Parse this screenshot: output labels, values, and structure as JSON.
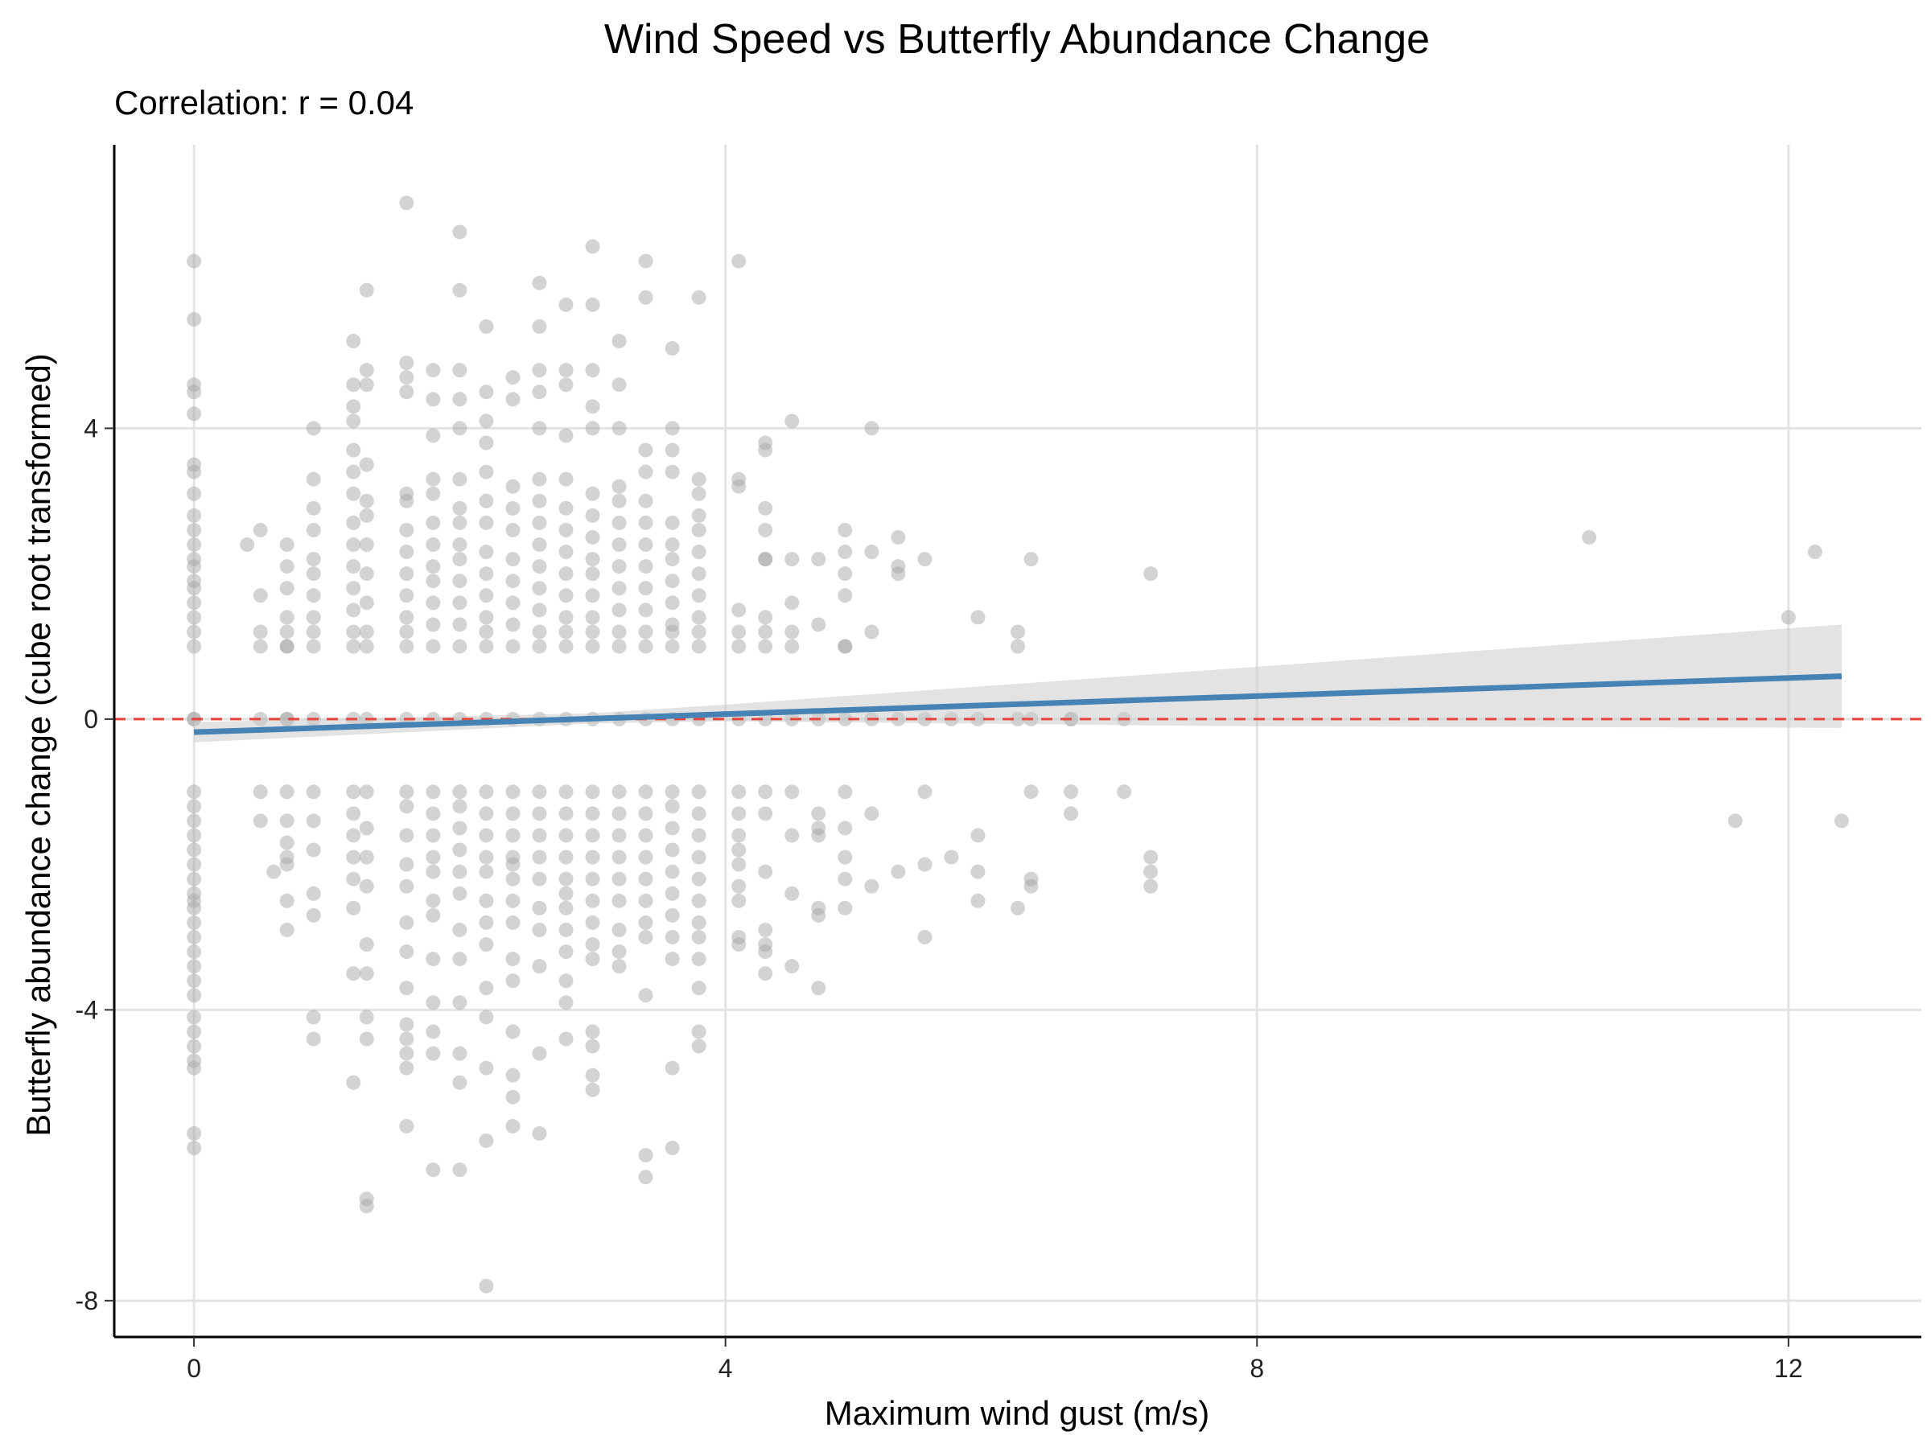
{
  "chart_data": {
    "type": "scatter",
    "title": "Wind Speed vs Butterfly Abundance Change",
    "subtitle": "Correlation: r = 0.04",
    "xlabel": "Maximum wind gust (m/s)",
    "ylabel": "Butterfly abundance change (cube root transformed)",
    "xlim": [
      -0.6,
      13.0
    ],
    "ylim": [
      -8.5,
      7.9
    ],
    "xticks": [
      0,
      4,
      8,
      12
    ],
    "yticks": [
      -8,
      -4,
      0,
      4
    ],
    "xtick_labels": [
      "0",
      "4",
      "8",
      "12"
    ],
    "ytick_labels": [
      "-8",
      "-4",
      "0",
      "4"
    ],
    "grid": true,
    "reference_line": {
      "y": 0,
      "style": "dashed",
      "color": "#e8433a"
    },
    "point_color": "#a8a8a8",
    "trend": {
      "color": "#4682b4",
      "band_color": "#cccccc",
      "points": [
        [
          0.0,
          -0.18
        ],
        [
          12.4,
          0.59
        ]
      ],
      "band": [
        [
          0.0,
          -0.32,
          -0.04
        ],
        [
          3.0,
          -0.06,
          0.08
        ],
        [
          4.0,
          -0.03,
          0.2
        ],
        [
          8.0,
          -0.1,
          0.72
        ],
        [
          12.4,
          -0.12,
          1.3
        ]
      ]
    },
    "series": [
      {
        "x": [
          0,
          0,
          0,
          0,
          0,
          0,
          0,
          0,
          0,
          0,
          0,
          0,
          0,
          0,
          0,
          0,
          0,
          0,
          0,
          0,
          0,
          0,
          0,
          0,
          0,
          0,
          0,
          0,
          0,
          0,
          0,
          0,
          0,
          0,
          0,
          0,
          0,
          0,
          0,
          0,
          0,
          0,
          0,
          0,
          0.4,
          0.5,
          0.5,
          0.5,
          0.5,
          0.5,
          0.6,
          0.5,
          0.5,
          0.7,
          0.7,
          0.7,
          0.7,
          0.7,
          0.7,
          0.7,
          0.7,
          0.7,
          0.7,
          0.7,
          0.7,
          0.7,
          0.7,
          0.7,
          0.7,
          0.9,
          0.9,
          0.9,
          0.9,
          0.9,
          0.9,
          0.9,
          0.9,
          0.9,
          0.9,
          0.9,
          0.9,
          0.9,
          0.9,
          0.9,
          0.9,
          0.9,
          0.9,
          1.2,
          1.2,
          1.2,
          1.2,
          1.2,
          1.2,
          1.2,
          1.2,
          1.2,
          1.2,
          1.2,
          1.2,
          1.2,
          1.2,
          1.2,
          1.2,
          1.2,
          1.2,
          1.2,
          1.2,
          1.2,
          1.2,
          1.2,
          1.3,
          1.3,
          1.3,
          1.3,
          1.3,
          1.3,
          1.3,
          1.3,
          1.3,
          1.3,
          1.3,
          1.3,
          1.3,
          1.3,
          1.3,
          1.3,
          1.3,
          1.3,
          1.3,
          1.3,
          1.3,
          1.3,
          1.6,
          1.6,
          1.6,
          1.6,
          1.6,
          1.6,
          1.6,
          1.6,
          1.6,
          1.6,
          1.6,
          1.6,
          1.6,
          1.6,
          1.6,
          1.6,
          1.6,
          1.6,
          1.6,
          1.6,
          1.6,
          1.6,
          1.6,
          1.6,
          1.6,
          1.6,
          1.6,
          1.8,
          1.8,
          1.8,
          1.8,
          1.8,
          1.8,
          1.8,
          1.8,
          1.8,
          1.8,
          1.8,
          1.8,
          1.8,
          1.8,
          1.8,
          1.8,
          1.8,
          1.8,
          1.8,
          1.8,
          1.8,
          1.8,
          1.8,
          1.8,
          1.8,
          2.0,
          2.0,
          2.0,
          2.0,
          2.0,
          2.0,
          2.0,
          2.0,
          2.0,
          2.0,
          2.0,
          2.0,
          2.0,
          2.0,
          2.0,
          2.0,
          2.0,
          2.0,
          2.0,
          2.0,
          2.0,
          2.0,
          2.0,
          2.0,
          2.0,
          2.0,
          2.0,
          2.2,
          2.2,
          2.2,
          2.2,
          2.2,
          2.2,
          2.2,
          2.2,
          2.2,
          2.2,
          2.2,
          2.2,
          2.2,
          2.2,
          2.2,
          2.2,
          2.2,
          2.2,
          2.2,
          2.2,
          2.2,
          2.2,
          2.2,
          2.2,
          2.2,
          2.2,
          2.2,
          2.4,
          2.4,
          2.4,
          2.4,
          2.4,
          2.4,
          2.4,
          2.4,
          2.4,
          2.4,
          2.4,
          2.4,
          2.4,
          2.4,
          2.4,
          2.4,
          2.4,
          2.4,
          2.4,
          2.4,
          2.4,
          2.4,
          2.4,
          2.4,
          2.4,
          2.6,
          2.6,
          2.6,
          2.6,
          2.6,
          2.6,
          2.6,
          2.6,
          2.6,
          2.6,
          2.6,
          2.6,
          2.6,
          2.6,
          2.6,
          2.6,
          2.6,
          2.6,
          2.6,
          2.6,
          2.6,
          2.6,
          2.6,
          2.6,
          2.6,
          2.8,
          2.8,
          2.8,
          2.8,
          2.8,
          2.8,
          2.8,
          2.8,
          2.8,
          2.8,
          2.8,
          2.8,
          2.8,
          2.8,
          2.8,
          2.8,
          2.8,
          2.8,
          2.8,
          2.8,
          2.8,
          2.8,
          2.8,
          2.8,
          2.8,
          2.8,
          3.0,
          3.0,
          3.0,
          3.0,
          3.0,
          3.0,
          3.0,
          3.0,
          3.0,
          3.0,
          3.0,
          3.0,
          3.0,
          3.0,
          3.0,
          3.0,
          3.0,
          3.0,
          3.0,
          3.0,
          3.0,
          3.0,
          3.0,
          3.0,
          3.0,
          3.0,
          3.0,
          3.0,
          3.2,
          3.2,
          3.2,
          3.2,
          3.2,
          3.2,
          3.2,
          3.2,
          3.2,
          3.2,
          3.2,
          3.2,
          3.2,
          3.2,
          3.2,
          3.2,
          3.2,
          3.2,
          3.2,
          3.2,
          3.2,
          3.2,
          3.4,
          3.4,
          3.4,
          3.4,
          3.4,
          3.4,
          3.4,
          3.4,
          3.4,
          3.4,
          3.4,
          3.4,
          3.4,
          3.4,
          3.4,
          3.4,
          3.4,
          3.4,
          3.4,
          3.4,
          3.4,
          3.4,
          3.4,
          3.4,
          3.6,
          3.6,
          3.6,
          3.6,
          3.6,
          3.6,
          3.6,
          3.6,
          3.6,
          3.6,
          3.6,
          3.6,
          3.6,
          3.6,
          3.6,
          3.6,
          3.6,
          3.6,
          3.6,
          3.6,
          3.6,
          3.6,
          3.6,
          3.6,
          3.8,
          3.8,
          3.8,
          3.8,
          3.8,
          3.8,
          3.8,
          3.8,
          3.8,
          3.8,
          3.8,
          3.8,
          3.8,
          3.8,
          3.8,
          3.8,
          3.8,
          3.8,
          3.8,
          3.8,
          3.8,
          3.8,
          3.8,
          3.8,
          4.1,
          4.1,
          4.1,
          4.1,
          4.1,
          4.1,
          4.1,
          4.1,
          4.1,
          4.1,
          4.1,
          4.1,
          4.1,
          4.1,
          4.1,
          4.1,
          4.3,
          4.3,
          4.3,
          4.3,
          4.3,
          4.3,
          4.3,
          4.3,
          4.3,
          4.3,
          4.3,
          4.3,
          4.3,
          4.3,
          4.3,
          4.3,
          4.3,
          4.5,
          4.5,
          4.5,
          4.5,
          4.5,
          4.5,
          4.5,
          4.5,
          4.5,
          4.5,
          4.7,
          4.7,
          4.7,
          4.7,
          4.7,
          4.7,
          4.7,
          4.7,
          4.7,
          4.9,
          4.9,
          4.9,
          4.9,
          4.9,
          4.9,
          4.9,
          4.9,
          4.9,
          4.9,
          4.9,
          4.9,
          5.1,
          5.1,
          5.1,
          5.1,
          5.1,
          5.1,
          5.3,
          5.3,
          5.3,
          5.3,
          5.3,
          5.5,
          5.5,
          5.5,
          5.5,
          5.5,
          5.7,
          5.7,
          5.9,
          5.9,
          5.9,
          5.9,
          5.9,
          6.2,
          6.2,
          6.2,
          6.2,
          6.3,
          6.3,
          6.3,
          6.3,
          6.3,
          6.6,
          6.6,
          6.6,
          6.6,
          7.0,
          7.0,
          7.2,
          7.2,
          7.2,
          7.2,
          10.5,
          11.6,
          12.0,
          12.2,
          12.4
        ],
        "y": [
          6.3,
          5.5,
          4.6,
          4.5,
          4.2,
          3.5,
          3.4,
          3.1,
          2.8,
          2.6,
          2.4,
          2.2,
          2.1,
          1.9,
          1.8,
          1.6,
          1.4,
          1.2,
          1.0,
          0,
          0,
          -1.0,
          -1.2,
          -1.4,
          -1.6,
          -1.8,
          -2.0,
          -2.2,
          -2.4,
          -2.6,
          -2.8,
          -3.0,
          -3.2,
          -3.4,
          -3.6,
          -3.8,
          -4.1,
          -4.3,
          -4.5,
          -4.7,
          -4.8,
          -5.7,
          -5.9,
          -2.5,
          2.4,
          1.7,
          2.6,
          1.2,
          1.0,
          0,
          -2.1,
          -1.0,
          -1.4,
          2.4,
          2.1,
          1.8,
          1.4,
          1.2,
          1.0,
          0,
          -1.0,
          -1.4,
          -1.7,
          -1.9,
          -2.0,
          -2.5,
          -2.9,
          0,
          1.0,
          4.0,
          3.3,
          2.9,
          2.6,
          2.2,
          2.0,
          1.7,
          1.4,
          1.2,
          1.0,
          0,
          -1.0,
          -1.4,
          -1.8,
          -2.4,
          -2.7,
          -4.1,
          -4.4,
          5.2,
          4.6,
          4.3,
          4.1,
          3.7,
          3.4,
          3.1,
          2.7,
          2.4,
          2.1,
          1.8,
          1.5,
          1.2,
          1.0,
          0,
          -1.0,
          -1.3,
          -1.6,
          -1.9,
          -2.2,
          -2.6,
          -3.5,
          -5.0,
          5.9,
          4.8,
          4.6,
          3.5,
          3.0,
          2.8,
          2.4,
          2.0,
          1.6,
          1.2,
          1.0,
          0,
          -1.0,
          -1.5,
          -1.9,
          -2.3,
          -3.1,
          -3.5,
          -4.1,
          -4.4,
          -6.6,
          -6.7,
          7.1,
          4.9,
          4.7,
          4.5,
          3.1,
          3.0,
          2.6,
          2.3,
          2.0,
          1.7,
          1.4,
          1.2,
          1.0,
          0,
          -1.0,
          -1.2,
          -1.6,
          -2.0,
          -2.3,
          -2.8,
          -3.2,
          -3.7,
          -4.2,
          -4.4,
          -4.6,
          -4.8,
          -5.6,
          4.8,
          4.4,
          3.9,
          3.3,
          3.1,
          2.7,
          2.4,
          2.1,
          1.9,
          1.6,
          1.3,
          1.0,
          0,
          -1.0,
          -1.3,
          -1.6,
          -1.9,
          -2.1,
          -2.5,
          -2.7,
          -3.3,
          -3.9,
          -4.3,
          -4.6,
          -6.2,
          6.7,
          5.9,
          4.8,
          4.4,
          4.0,
          3.3,
          2.9,
          2.7,
          2.4,
          2.2,
          1.9,
          1.6,
          1.3,
          1.0,
          0,
          -1.0,
          -1.2,
          -1.5,
          -1.8,
          -2.1,
          -2.4,
          -2.9,
          -3.3,
          -3.9,
          -4.6,
          -5.0,
          -6.2,
          5.4,
          4.5,
          4.1,
          3.8,
          3.4,
          3.0,
          2.7,
          2.3,
          2.0,
          1.7,
          1.4,
          1.2,
          1.0,
          0,
          -1.0,
          -1.3,
          -1.6,
          -1.9,
          -2.1,
          -2.5,
          -2.8,
          -3.1,
          -3.7,
          -4.1,
          -4.8,
          -5.8,
          -7.8,
          4.7,
          4.4,
          3.2,
          2.9,
          2.6,
          2.2,
          1.9,
          1.6,
          1.3,
          1.0,
          0,
          -1.0,
          -1.3,
          -1.6,
          -1.9,
          -2.2,
          -2.5,
          -2.8,
          -3.3,
          -3.6,
          -4.3,
          -4.9,
          -5.2,
          -5.6,
          -2.0,
          6.0,
          5.4,
          4.8,
          4.5,
          4.0,
          3.3,
          3.0,
          2.7,
          2.4,
          2.1,
          1.8,
          1.5,
          1.2,
          1.0,
          0,
          -1.0,
          -1.3,
          -1.6,
          -1.9,
          -2.2,
          -2.6,
          -2.9,
          -3.4,
          -4.6,
          -5.7,
          5.7,
          4.8,
          4.6,
          3.9,
          3.3,
          2.9,
          2.6,
          2.3,
          2.0,
          1.7,
          1.4,
          1.2,
          1.0,
          0,
          -1.0,
          -1.3,
          -1.6,
          -1.9,
          -2.2,
          -2.6,
          -2.9,
          -3.2,
          -3.6,
          -3.9,
          -4.4,
          -2.4,
          6.5,
          5.7,
          4.8,
          4.3,
          4.0,
          3.1,
          2.8,
          2.5,
          2.2,
          2.0,
          1.7,
          1.4,
          1.2,
          1.0,
          0,
          -1.0,
          -1.3,
          -1.6,
          -1.9,
          -2.2,
          -2.5,
          -2.8,
          -3.1,
          -3.3,
          -4.3,
          -4.5,
          -4.9,
          -5.1,
          5.2,
          4.6,
          4.0,
          3.2,
          3.0,
          2.7,
          2.4,
          2.1,
          1.8,
          1.5,
          1.2,
          1.0,
          0,
          -1.0,
          -1.3,
          -1.6,
          -1.9,
          -2.2,
          -2.5,
          -2.9,
          -3.2,
          -3.4,
          6.3,
          5.8,
          3.7,
          3.4,
          3.0,
          2.7,
          2.4,
          2.1,
          1.8,
          1.5,
          1.2,
          1.0,
          0,
          -1.0,
          -1.3,
          -1.6,
          -1.9,
          -2.2,
          -2.5,
          -2.8,
          -3.0,
          -3.8,
          -6.0,
          -6.3,
          5.1,
          4.0,
          3.7,
          3.4,
          2.7,
          2.4,
          2.2,
          1.9,
          1.6,
          1.3,
          1.0,
          0,
          -1.0,
          -1.2,
          -1.5,
          -1.8,
          -2.1,
          -2.4,
          -2.7,
          -3.0,
          -3.3,
          -4.8,
          -5.9,
          1.2,
          5.8,
          3.3,
          3.1,
          2.8,
          2.6,
          2.3,
          2.0,
          1.7,
          1.4,
          1.2,
          1.0,
          0,
          -1.0,
          -1.3,
          -1.6,
          -1.9,
          -2.2,
          -2.5,
          -2.8,
          -3.0,
          -3.3,
          -3.7,
          -4.3,
          -4.5,
          6.3,
          3.3,
          3.2,
          1.5,
          1.2,
          1.0,
          0,
          -1.0,
          -1.3,
          -1.6,
          -1.8,
          -2.0,
          -2.3,
          -2.5,
          -3.1,
          -3.0,
          3.8,
          3.7,
          2.9,
          2.6,
          2.2,
          2.2,
          1.4,
          1.2,
          1.0,
          0,
          -1.0,
          -1.3,
          -2.1,
          -2.9,
          -3.1,
          -3.2,
          -3.5,
          4.1,
          2.2,
          1.6,
          1.2,
          1.0,
          0,
          -1.0,
          -1.6,
          -2.4,
          -3.4,
          2.2,
          1.3,
          0,
          -1.3,
          -1.5,
          -1.6,
          -2.6,
          -2.7,
          -3.7,
          2.6,
          2.3,
          2.0,
          1.7,
          1.0,
          1.0,
          0,
          -1.0,
          -1.5,
          -1.9,
          -2.2,
          -2.6,
          4.0,
          2.3,
          1.2,
          0,
          -1.3,
          -2.3,
          2.5,
          2.1,
          2.0,
          0,
          -2.1,
          2.2,
          0,
          -1.0,
          -2.0,
          -3.0,
          0,
          -1.9,
          1.4,
          0,
          -1.6,
          -2.1,
          -2.5,
          1.2,
          1.0,
          0,
          -2.6,
          2.2,
          0,
          -1.0,
          -2.2,
          -2.3,
          0,
          -1.0,
          -1.3,
          0,
          0,
          -1.0,
          2.0,
          -1.9,
          -2.1,
          -2.3,
          2.5,
          -1.4,
          1.4,
          2.3,
          -1.4
        ]
      }
    ]
  }
}
